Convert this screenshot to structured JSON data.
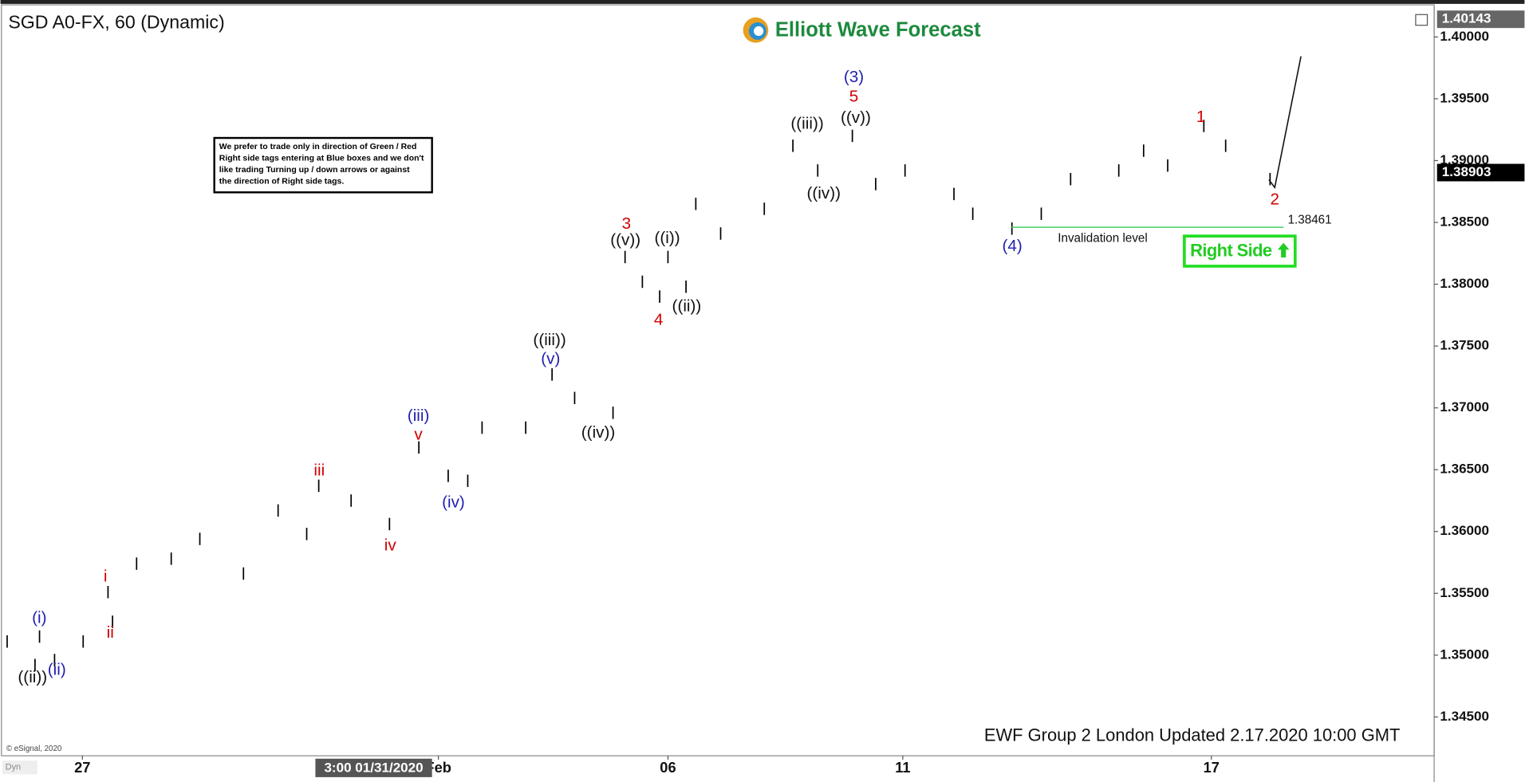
{
  "chart_data": {
    "type": "ohlc",
    "title": "SGD A0-FX, 60 (Dynamic)",
    "logo": "Elliott Wave Forecast",
    "note": [
      "We prefer to trade only in direction of Green / Red",
      "Right side tags entering at Blue boxes and we don't",
      "like trading Turning up / down arrows or against",
      "the direction of Right side tags."
    ],
    "footer": "EWF Group 2 London Updated 2.17.2020 10:00 GMT",
    "copyright": "© eSignal, 2020",
    "corner_label": "Dyn",
    "badge": "Right Side",
    "cursor_label": "3:00 01/31/2020",
    "invalidation": {
      "value": 1.38461,
      "label": "Invalidation level"
    },
    "price_high_tag": 1.40143,
    "last_price": 1.38903,
    "xlim": [
      -1.05,
      17.96
    ],
    "xticks": [
      {
        "value": 0,
        "label": "27"
      },
      {
        "value": 4.73,
        "label": "Feb"
      },
      {
        "value": 7.78,
        "label": "06"
      },
      {
        "value": 10.9,
        "label": "11"
      },
      {
        "value": 15.0,
        "label": "17"
      }
    ],
    "ylim": [
      1.34186,
      1.40236
    ],
    "yticks": [
      {
        "value": 1.345,
        "label": "1.34500"
      },
      {
        "value": 1.35,
        "label": "1.35000"
      },
      {
        "value": 1.355,
        "label": "1.35500"
      },
      {
        "value": 1.36,
        "label": "1.36000"
      },
      {
        "value": 1.365,
        "label": "1.36500"
      },
      {
        "value": 1.37,
        "label": "1.37000"
      },
      {
        "value": 1.375,
        "label": "1.37500"
      },
      {
        "value": 1.38,
        "label": "1.38000"
      },
      {
        "value": 1.385,
        "label": "1.38500"
      },
      {
        "value": 1.39,
        "label": "1.39000"
      },
      {
        "value": 1.395,
        "label": "1.39500"
      },
      {
        "value": 1.4,
        "label": "1.40000"
      }
    ],
    "series": [
      {
        "name": "SGD A0-FX",
        "color": "#000000",
        "x": [
          -1.0,
          -0.63,
          -0.57,
          -0.37,
          0.01,
          0.34,
          0.4,
          0.72,
          1.18,
          1.56,
          2.14,
          2.6,
          2.98,
          3.14,
          3.57,
          4.08,
          4.47,
          4.86,
          5.12,
          5.31,
          5.89,
          6.24,
          6.54,
          7.05,
          7.21,
          7.44,
          7.67,
          7.78,
          8.02,
          8.15,
          8.48,
          9.06,
          9.44,
          9.77,
          10.23,
          10.54,
          10.93,
          11.58,
          11.83,
          12.35,
          12.74,
          13.13,
          13.77,
          14.1,
          14.42,
          14.9,
          15.19,
          15.78
        ],
        "high": [
          1.3516,
          1.3497,
          1.352,
          1.3501,
          1.3516,
          1.3556,
          1.3532,
          1.3579,
          1.3583,
          1.3599,
          1.3571,
          1.3622,
          1.3603,
          1.3642,
          1.363,
          1.3611,
          1.3673,
          1.365,
          1.3646,
          1.3689,
          1.3689,
          1.3732,
          1.3713,
          1.3701,
          1.3827,
          1.3807,
          1.3795,
          1.3827,
          1.3803,
          1.387,
          1.3846,
          1.3866,
          1.3917,
          1.3897,
          1.3925,
          1.3886,
          1.3897,
          1.3878,
          1.3862,
          1.385,
          1.3862,
          1.389,
          1.3897,
          1.3913,
          1.3901,
          1.3933,
          1.3917,
          1.389
        ],
        "low": [
          1.3506,
          1.3487,
          1.351,
          1.3491,
          1.3506,
          1.3546,
          1.3522,
          1.3569,
          1.3573,
          1.3589,
          1.3561,
          1.3612,
          1.3593,
          1.3632,
          1.362,
          1.3601,
          1.3663,
          1.364,
          1.3636,
          1.3679,
          1.3679,
          1.3722,
          1.3703,
          1.3691,
          1.3817,
          1.3797,
          1.3785,
          1.3817,
          1.3793,
          1.386,
          1.3836,
          1.3856,
          1.3907,
          1.3887,
          1.3915,
          1.3876,
          1.3887,
          1.3868,
          1.3852,
          1.384,
          1.3852,
          1.388,
          1.3887,
          1.3903,
          1.3891,
          1.3923,
          1.3907,
          1.388
        ]
      }
    ],
    "annotations": [
      {
        "text": "(3)",
        "color": "#1f1fb0"
      },
      {
        "text": "5",
        "color": "#d00000"
      },
      {
        "text": "((v))",
        "color": "#111111"
      },
      {
        "text": "((iii))",
        "color": "#111111"
      },
      {
        "text": "((iv))",
        "color": "#111111"
      },
      {
        "text": "3",
        "color": "#d00000"
      },
      {
        "text": "((v))",
        "color": "#111111"
      },
      {
        "text": "((i))",
        "color": "#111111"
      },
      {
        "text": "4",
        "color": "#d00000"
      },
      {
        "text": "((ii))",
        "color": "#111111"
      },
      {
        "text": "((iii))",
        "color": "#111111"
      },
      {
        "text": "(v)",
        "color": "#1f1fb0"
      },
      {
        "text": "((iv))",
        "color": "#111111"
      },
      {
        "text": "(iii)",
        "color": "#1f1fb0"
      },
      {
        "text": "v",
        "color": "#d00000"
      },
      {
        "text": "iii",
        "color": "#d00000"
      },
      {
        "text": "(iv)",
        "color": "#1f1fb0"
      },
      {
        "text": "iv",
        "color": "#d00000"
      },
      {
        "text": "i",
        "color": "#d00000"
      },
      {
        "text": "ii",
        "color": "#d00000"
      },
      {
        "text": "(i)",
        "color": "#1f1fb0"
      },
      {
        "text": "(ii)",
        "color": "#1f1fb0"
      },
      {
        "text": "((ii))",
        "color": "#111111"
      },
      {
        "text": "(4)",
        "color": "#1f1fb0"
      },
      {
        "text": "1",
        "color": "#d00000"
      },
      {
        "text": "2",
        "color": "#d00000"
      }
    ]
  }
}
